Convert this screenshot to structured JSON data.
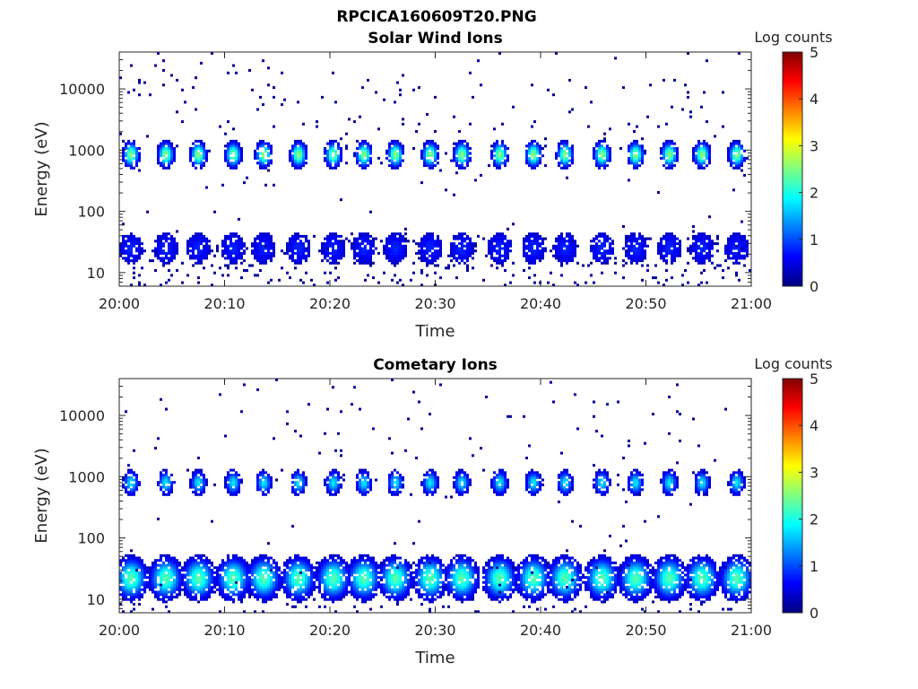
{
  "main_title": "RPCICA160609T20.PNG",
  "chart_data": [
    {
      "type": "heatmap",
      "title": "Solar Wind Ions",
      "xlabel": "Time",
      "ylabel": "Energy (eV)",
      "x_ticks": [
        "20:00",
        "20:10",
        "20:20",
        "20:30",
        "20:40",
        "20:50",
        "21:00"
      ],
      "x_range_minutes": [
        0,
        60
      ],
      "y_scale": "log",
      "y_range": [
        6,
        40000
      ],
      "y_ticks": [
        "10",
        "100",
        "1000",
        "10000"
      ],
      "y_tick_values": [
        10,
        100,
        1000,
        10000
      ],
      "colorbar": {
        "label": "Log counts",
        "ticks": [
          "0",
          "1",
          "2",
          "3",
          "4",
          "5"
        ],
        "range": [
          0,
          5
        ],
        "colormap": "jet"
      },
      "burst_times_minutes": [
        1.0,
        4.3,
        7.4,
        10.7,
        13.6,
        16.9,
        20.2,
        23.1,
        26.1,
        29.4,
        32.4,
        36.0,
        39.2,
        42.2,
        45.7,
        48.9,
        52.1,
        55.2,
        58.5
      ],
      "populations": [
        {
          "name": "solar wind peak",
          "energy_eV": 850,
          "peak_log_counts": 2.6
        },
        {
          "name": "low-energy",
          "energy_eV": 25,
          "peak_log_counts": 0.8
        }
      ],
      "background_log_counts": 0.3
    },
    {
      "type": "heatmap",
      "title": "Cometary Ions",
      "xlabel": "Time",
      "ylabel": "Energy (eV)",
      "x_ticks": [
        "20:00",
        "20:10",
        "20:20",
        "20:30",
        "20:40",
        "20:50",
        "21:00"
      ],
      "x_range_minutes": [
        0,
        60
      ],
      "y_scale": "log",
      "y_range": [
        6,
        40000
      ],
      "y_ticks": [
        "10",
        "100",
        "1000",
        "10000"
      ],
      "y_tick_values": [
        10,
        100,
        1000,
        10000
      ],
      "colorbar": {
        "label": "Log counts",
        "ticks": [
          "0",
          "1",
          "2",
          "3",
          "4",
          "5"
        ],
        "range": [
          0,
          5
        ],
        "colormap": "jet"
      },
      "burst_times_minutes": [
        1.0,
        4.3,
        7.4,
        10.7,
        13.6,
        16.9,
        20.2,
        23.1,
        26.1,
        29.4,
        32.4,
        36.0,
        39.2,
        42.2,
        45.7,
        48.9,
        52.1,
        55.2,
        58.5
      ],
      "populations": [
        {
          "name": "solar wind peak",
          "energy_eV": 800,
          "peak_log_counts": 1.8
        },
        {
          "name": "cometary low-energy",
          "energy_eV": 22,
          "peak_log_counts": 2.3
        }
      ],
      "background_log_counts": 0.2
    }
  ]
}
